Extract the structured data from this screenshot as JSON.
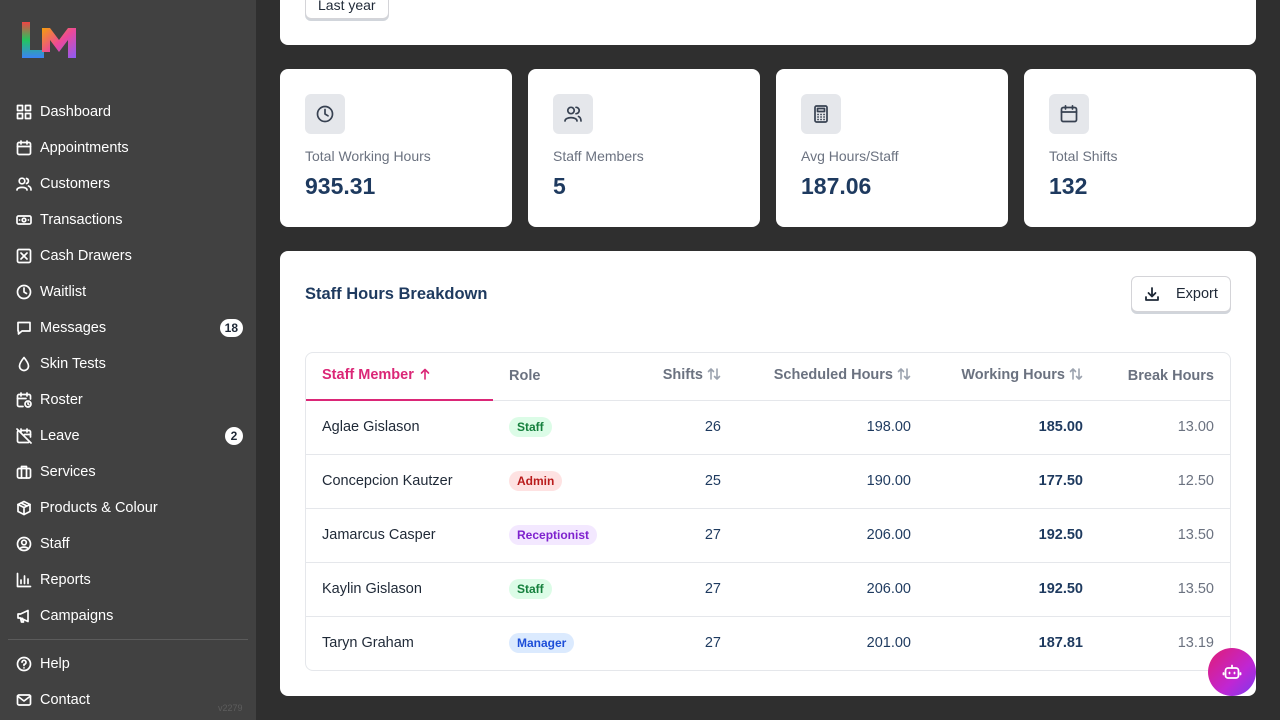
{
  "sidebar": {
    "logo_text": "LM",
    "items": [
      {
        "label": "Dashboard",
        "icon": "grid-icon"
      },
      {
        "label": "Appointments",
        "icon": "calendar-icon"
      },
      {
        "label": "Customers",
        "icon": "users-icon"
      },
      {
        "label": "Transactions",
        "icon": "banknote-icon"
      },
      {
        "label": "Cash Drawers",
        "icon": "box-x-icon"
      },
      {
        "label": "Waitlist",
        "icon": "clock-icon"
      },
      {
        "label": "Messages",
        "icon": "message-icon",
        "badge": "18"
      },
      {
        "label": "Skin Tests",
        "icon": "droplet-icon"
      },
      {
        "label": "Roster",
        "icon": "calendar-clock-icon"
      },
      {
        "label": "Leave",
        "icon": "calendar-off-icon",
        "badge": "2"
      },
      {
        "label": "Services",
        "icon": "briefcase-icon"
      },
      {
        "label": "Products & Colour",
        "icon": "package-icon"
      },
      {
        "label": "Staff",
        "icon": "user-circle-icon"
      },
      {
        "label": "Reports",
        "icon": "bar-chart-icon"
      },
      {
        "label": "Campaigns",
        "icon": "megaphone-icon"
      }
    ],
    "footer_items": [
      {
        "label": "Help",
        "icon": "help-circle-icon"
      },
      {
        "label": "Contact",
        "icon": "mail-icon"
      }
    ],
    "version": "v2279"
  },
  "filters": {
    "period_label": "Last year"
  },
  "stats": [
    {
      "label": "Total Working Hours",
      "value": "935.31",
      "icon": "clock-icon"
    },
    {
      "label": "Staff Members",
      "value": "5",
      "icon": "users-icon"
    },
    {
      "label": "Avg Hours/Staff",
      "value": "187.06",
      "icon": "calculator-icon"
    },
    {
      "label": "Total Shifts",
      "value": "132",
      "icon": "calendar-icon"
    }
  ],
  "breakdown": {
    "title": "Staff Hours Breakdown",
    "export_label": "Export",
    "columns": [
      "Staff Member",
      "Role",
      "Shifts",
      "Scheduled Hours",
      "Working Hours",
      "Break Hours"
    ],
    "rows": [
      {
        "name": "Aglae Gislason",
        "role": "Staff",
        "shifts": "26",
        "scheduled": "198.00",
        "working": "185.00",
        "break": "13.00"
      },
      {
        "name": "Concepcion Kautzer",
        "role": "Admin",
        "shifts": "25",
        "scheduled": "190.00",
        "working": "177.50",
        "break": "12.50"
      },
      {
        "name": "Jamarcus Casper",
        "role": "Receptionist",
        "shifts": "27",
        "scheduled": "206.00",
        "working": "192.50",
        "break": "13.50"
      },
      {
        "name": "Kaylin Gislason",
        "role": "Staff",
        "shifts": "27",
        "scheduled": "206.00",
        "working": "192.50",
        "break": "13.50"
      },
      {
        "name": "Taryn Graham",
        "role": "Manager",
        "shifts": "27",
        "scheduled": "201.00",
        "working": "187.81",
        "break": "13.19"
      }
    ]
  },
  "colors": {
    "sidebar_bg": "#414141",
    "page_bg": "#2f2f2f",
    "accent": "#db2777",
    "value_text": "#1e3a5f",
    "role_staff": {
      "bg": "#dcfce7",
      "fg": "#15803d"
    },
    "role_admin": {
      "bg": "#fee2e2",
      "fg": "#b91c1c"
    },
    "role_receptionist": {
      "bg": "#f3e8ff",
      "fg": "#7e22ce"
    },
    "role_manager": {
      "bg": "#dbeafe",
      "fg": "#1d4ed8"
    }
  },
  "assistant": {
    "icon": "bot-icon"
  }
}
